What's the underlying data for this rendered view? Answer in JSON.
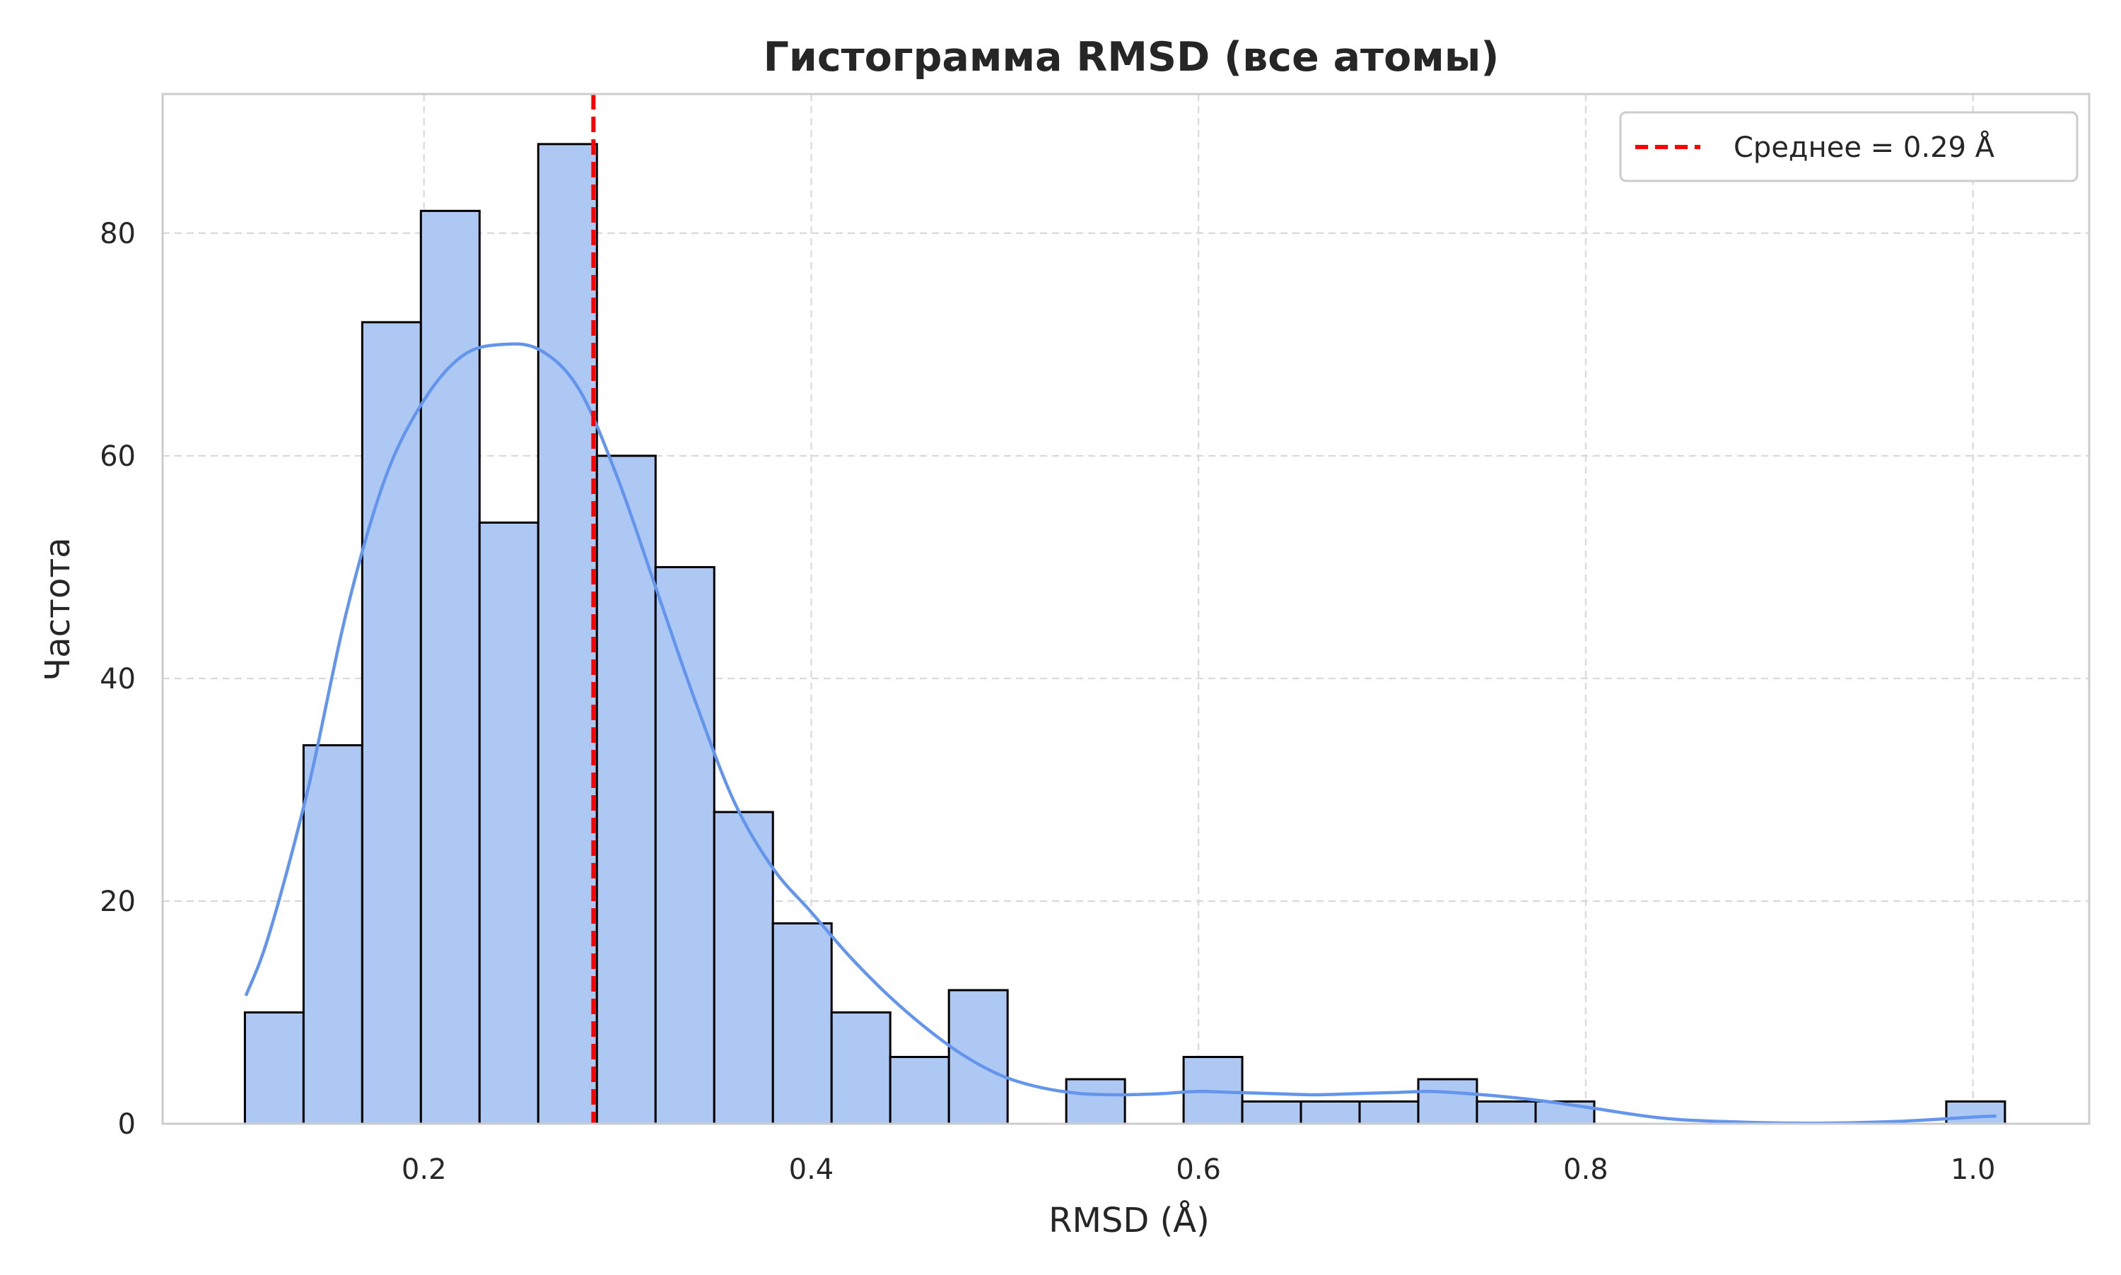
{
  "chart_data": {
    "type": "bar",
    "title": "Гистограмма RMSD (все атомы)",
    "xlabel": "RMSD (Å)",
    "ylabel": "Частота",
    "xlim": [
      0.065,
      1.06
    ],
    "ylim": [
      0,
      92.5
    ],
    "x_ticks": [
      0.2,
      0.4,
      0.6,
      0.8,
      1.0
    ],
    "x_tick_labels": [
      "0.2",
      "0.4",
      "0.6",
      "0.8",
      "1.0"
    ],
    "y_ticks": [
      0,
      20,
      40,
      60,
      80
    ],
    "y_tick_labels": [
      "0",
      "20",
      "40",
      "60",
      "80"
    ],
    "grid": true,
    "legend_position": "top-right",
    "bins": {
      "start": 0.1075,
      "width": 0.0303,
      "counts": [
        10,
        34,
        72,
        82,
        54,
        88,
        60,
        50,
        28,
        18,
        10,
        6,
        12,
        0,
        4,
        0,
        6,
        2,
        2,
        2,
        4,
        2,
        2,
        0,
        0,
        0,
        0,
        0,
        0,
        2
      ]
    },
    "kde": {
      "x": [
        0.108,
        0.12,
        0.14,
        0.16,
        0.18,
        0.2,
        0.22,
        0.24,
        0.26,
        0.28,
        0.3,
        0.32,
        0.34,
        0.36,
        0.38,
        0.4,
        0.42,
        0.44,
        0.46,
        0.48,
        0.5,
        0.52,
        0.54,
        0.56,
        0.58,
        0.6,
        0.62,
        0.64,
        0.66,
        0.68,
        0.7,
        0.72,
        0.74,
        0.76,
        0.78,
        0.8,
        0.84,
        0.88,
        0.92,
        0.96,
        1.0,
        1.012
      ],
      "y": [
        11.5,
        17,
        30,
        46,
        58,
        65,
        69,
        70,
        69.5,
        66,
        58,
        48,
        38,
        29,
        23,
        19,
        15,
        11.5,
        8.5,
        6,
        4.2,
        3.2,
        2.7,
        2.6,
        2.7,
        2.9,
        2.8,
        2.7,
        2.6,
        2.7,
        2.8,
        2.9,
        2.7,
        2.4,
        2,
        1.5,
        0.5,
        0.15,
        0.05,
        0.2,
        0.6,
        0.7
      ]
    },
    "mean_line": {
      "x": 0.2875,
      "label": "Среднее = 0.29 Å"
    },
    "colors": {
      "bar_fill": "#aec8f4",
      "bar_edge": "#000000",
      "kde": "#6495ed",
      "mean": "#ff0000",
      "grid": "#d9d9d9",
      "axes": "#cccccc",
      "text": "#262626"
    }
  }
}
